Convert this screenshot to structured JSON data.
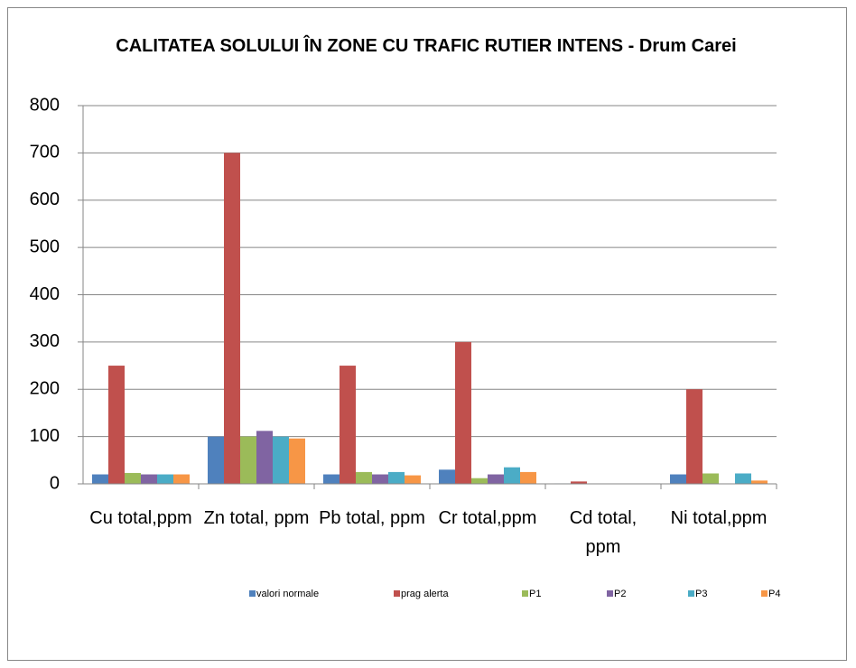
{
  "chart_data": {
    "type": "bar",
    "title": "CALITATEA SOLULUI ÎN ZONE CU TRAFIC RUTIER INTENS - Drum Carei",
    "categories": [
      "Cu total,ppm",
      "Zn total, ppm",
      "Pb total, ppm",
      "Cr total,ppm",
      "Cd total, ppm",
      "Ni total,ppm"
    ],
    "series": [
      {
        "name": "valori normale",
        "color": "#4f81bd",
        "values": [
          20,
          100,
          20,
          30,
          1,
          20
        ]
      },
      {
        "name": "prag alerta",
        "color": "#c0504d",
        "values": [
          250,
          700,
          250,
          300,
          5,
          200
        ]
      },
      {
        "name": "P1",
        "color": "#9bbb59",
        "values": [
          23,
          100,
          25,
          12,
          0.5,
          22
        ]
      },
      {
        "name": "P2",
        "color": "#8064a2",
        "values": [
          20,
          112,
          20,
          20,
          0.3,
          null
        ]
      },
      {
        "name": "P3",
        "color": "#4bacc6",
        "values": [
          20,
          100,
          25,
          35,
          0.4,
          22
        ]
      },
      {
        "name": "P4",
        "color": "#f79646",
        "values": [
          20,
          96,
          18,
          25,
          0.3,
          7
        ]
      }
    ],
    "ylim": [
      0,
      800
    ],
    "yticks": [
      0,
      100,
      200,
      300,
      400,
      500,
      600,
      700,
      800
    ],
    "grid": true,
    "legend": "bottom"
  }
}
